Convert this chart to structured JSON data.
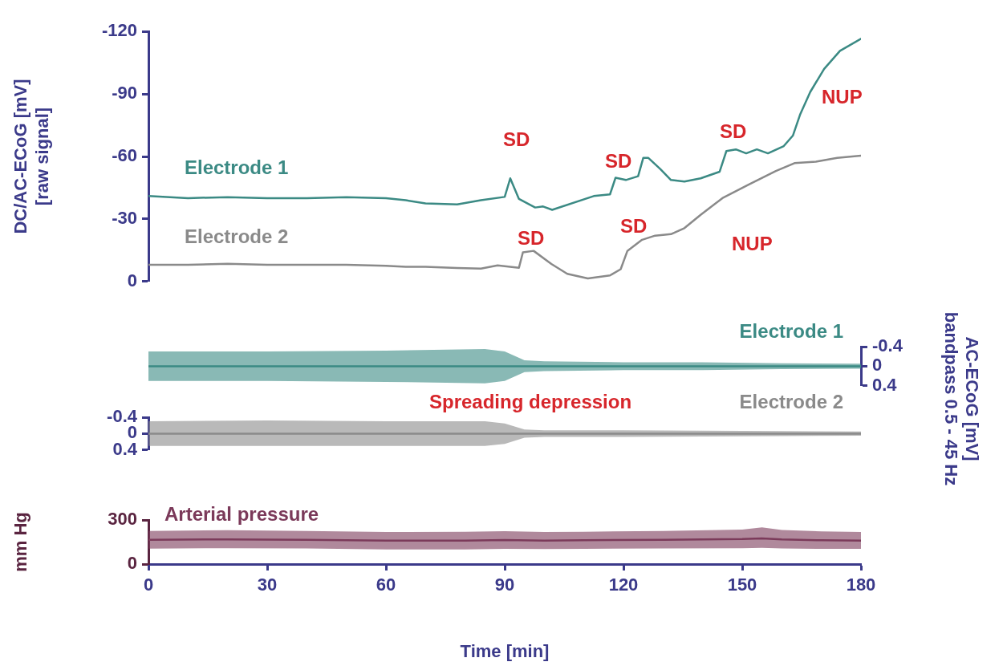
{
  "chart_data": [
    {
      "type": "line",
      "ylabel": "DC/AC-ECoG [mV]\n[raw signal]",
      "xlim": [
        0,
        180
      ],
      "ylim": [
        0,
        -120
      ],
      "yticks": [
        0,
        -30,
        -60,
        -90,
        -120
      ],
      "tick_labels": "y",
      "marker": "none",
      "line_style": "solid",
      "series": [
        {
          "name": "Electrode 1",
          "color": "#3b8a84",
          "x": [
            0,
            10,
            20,
            30,
            40,
            50,
            60,
            65,
            70,
            78,
            84,
            90,
            91.4,
            93.6,
            97.7,
            99.7,
            102,
            112.5,
            116.6,
            118,
            120.6,
            123.7,
            125,
            126.3,
            129.3,
            132,
            135.4,
            139.5,
            144.3,
            146,
            148.4,
            151,
            153.7,
            156.5,
            160.5,
            162.8,
            164.6,
            167.2,
            170.7,
            174.7,
            180
          ],
          "values": [
            -41,
            -40,
            -40.5,
            -40,
            -40,
            -40.5,
            -40,
            -39,
            -37.5,
            -37,
            -39,
            -40.6,
            -49.5,
            -39.6,
            -35.5,
            -36,
            -34.4,
            -41,
            -41.8,
            -49.8,
            -48.7,
            -50.5,
            -59.3,
            -59.3,
            -54,
            -48.7,
            -48,
            -49.5,
            -52.7,
            -62.6,
            -63.4,
            -61.5,
            -63.4,
            -61.5,
            -65,
            -70,
            -80,
            -91,
            -102,
            -110.7,
            -116.5
          ]
        },
        {
          "name": "Electrode 2",
          "color": "#8a8a8a",
          "x": [
            0,
            10,
            20,
            30,
            40,
            50,
            60,
            65,
            70,
            78,
            84,
            88.2,
            93.6,
            94.6,
            97.3,
            101.8,
            105.8,
            111,
            116.6,
            119.3,
            121,
            124.7,
            128,
            132,
            135.4,
            139.5,
            145,
            151.6,
            158.5,
            163.2,
            168.6,
            174,
            180
          ],
          "values": [
            -8,
            -8,
            -8.5,
            -8,
            -8,
            -8,
            -7.5,
            -7,
            -7,
            -6.5,
            -6.2,
            -7.7,
            -6.6,
            -14,
            -14.7,
            -8.4,
            -3.7,
            -1.5,
            -2.9,
            -5.9,
            -14.7,
            -20,
            -22,
            -22.7,
            -25.6,
            -32,
            -40,
            -46.5,
            -53,
            -56.8,
            -57.5,
            -59.3,
            -60.4
          ]
        }
      ],
      "annotations": [
        "SD",
        "SD",
        "SD",
        "NUP",
        "SD",
        "SD",
        "NUP"
      ]
    },
    {
      "type": "line",
      "y2label": "AC-ECoG [mV]\nbandpass 0.5 - 45 Hz",
      "xlim": [
        0,
        180
      ],
      "y2lim": [
        0.4,
        -0.4
      ],
      "y2ticks": [
        0.4,
        0,
        -0.4
      ],
      "tick_labels": "y2",
      "marker": "none",
      "line_style": "solid",
      "series": [
        {
          "name": "Electrode 1",
          "color": "#3b8a84",
          "axis": "y2",
          "x": [
            0,
            30,
            60,
            85,
            90,
            95,
            100,
            120,
            140,
            160,
            180
          ],
          "values": [
            0,
            0,
            0,
            0,
            0,
            0,
            0,
            0,
            0,
            0,
            0
          ],
          "lower": [
            -0.3,
            -0.3,
            -0.32,
            -0.35,
            -0.3,
            -0.12,
            -0.1,
            -0.08,
            -0.08,
            -0.06,
            -0.05
          ],
          "upper": [
            0.3,
            0.3,
            0.32,
            0.35,
            0.3,
            0.12,
            0.1,
            0.08,
            0.08,
            0.06,
            0.05
          ]
        }
      ],
      "annotations": [
        "Spreading depression"
      ]
    },
    {
      "type": "line",
      "xlim": [
        0,
        180
      ],
      "ylim": [
        0.4,
        -0.4
      ],
      "yticks": [
        0.4,
        0,
        -0.4
      ],
      "tick_labels": "y",
      "marker": "none",
      "line_style": "solid",
      "series": [
        {
          "name": "Electrode 2",
          "color": "#8a8a8a",
          "x": [
            0,
            30,
            60,
            85,
            90,
            95,
            100,
            120,
            140,
            160,
            180
          ],
          "values": [
            0,
            0,
            0,
            0,
            0,
            0,
            0,
            0,
            0,
            0,
            0
          ],
          "lower": [
            -0.3,
            -0.32,
            -0.3,
            -0.3,
            -0.25,
            -0.1,
            -0.08,
            -0.08,
            -0.07,
            -0.06,
            -0.05
          ],
          "upper": [
            0.3,
            0.3,
            0.3,
            0.3,
            0.25,
            0.1,
            0.08,
            0.08,
            0.07,
            0.06,
            0.05
          ]
        }
      ]
    },
    {
      "type": "line",
      "xlabel": "Time [min]",
      "ylabel": "mm Hg",
      "xlim": [
        0,
        180
      ],
      "xticks": [
        0,
        30,
        60,
        90,
        120,
        150,
        180
      ],
      "ylim": [
        0,
        300
      ],
      "yticks": [
        0,
        300
      ],
      "marker": "none",
      "line_style": "solid",
      "series": [
        {
          "name": "Arterial pressure",
          "color": "#7b3a5a",
          "x": [
            0,
            20,
            40,
            60,
            80,
            90,
            100,
            110,
            130,
            150,
            155,
            160,
            170,
            180
          ],
          "values": [
            165,
            168,
            165,
            160,
            160,
            163,
            160,
            162,
            165,
            170,
            175,
            168,
            162,
            160
          ],
          "lower": [
            105,
            108,
            106,
            100,
            100,
            104,
            102,
            104,
            106,
            108,
            110,
            106,
            104,
            103
          ],
          "upper": [
            225,
            230,
            225,
            218,
            220,
            224,
            218,
            220,
            225,
            235,
            250,
            232,
            222,
            218
          ]
        }
      ]
    }
  ]
}
